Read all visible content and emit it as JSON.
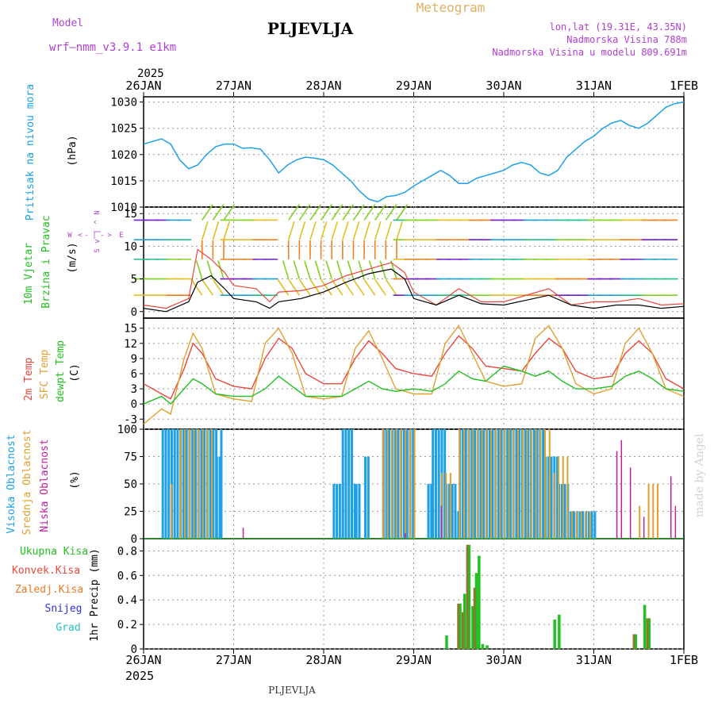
{
  "header": {
    "model_label": "Model",
    "model_name": "wrf–nmm_v3.9.1  e1km",
    "station": "PLJEVLJA",
    "product": "Meteogram",
    "lonlat": "lon,lat (19.31E, 43.35N)",
    "elevation": "Nadmorska Visina 788m",
    "model_elevation": "Nadmorska Visina u modelu 809.691m",
    "footer_station": "PLJEVLJA",
    "watermark": "made by Angel"
  },
  "colors": {
    "pressure": "#1ea0e6",
    "temp2m": "#e8473c",
    "sfc_temp": "#e0a030",
    "dewpt": "#22c020",
    "high_cloud": "#1ea0e6",
    "mid_cloud": "#e0a030",
    "low_cloud": "#c020a0",
    "total_precip": "#22c020",
    "conv_precip": "#e8473c",
    "frozen_precip": "#f07820",
    "snow": "#3030e0",
    "hail": "#20c0c0",
    "title": "#000000",
    "header_purple": "#b040d0",
    "meteogram": "#e0b060"
  },
  "chart_data": [
    {
      "panel": "pressure",
      "type": "line",
      "ylabel_lines": [
        "Pritisak na nivou mora",
        "(hPa)"
      ],
      "ylim": [
        1010,
        1031
      ],
      "yticks": [
        "1010",
        "1015",
        "1020",
        "1025",
        "1030"
      ],
      "x_days": [
        0,
        0.1,
        0.2,
        0.3,
        0.4,
        0.5,
        0.6,
        0.7,
        0.8,
        0.9,
        1.0,
        1.1,
        1.2,
        1.3,
        1.4,
        1.5,
        1.6,
        1.7,
        1.8,
        1.9,
        2.0,
        2.1,
        2.2,
        2.3,
        2.4,
        2.5,
        2.6,
        2.7,
        2.8,
        2.9,
        3.0,
        3.1,
        3.2,
        3.3,
        3.4,
        3.5,
        3.6,
        3.7,
        3.8,
        3.9,
        4.0,
        4.1,
        4.2,
        4.3,
        4.4,
        4.5,
        4.6,
        4.7,
        4.8,
        4.9,
        5.0,
        5.1,
        5.2,
        5.3,
        5.4,
        5.5,
        5.6,
        5.7,
        5.8,
        5.9,
        6.0
      ],
      "values": [
        1022,
        1022.5,
        1023,
        1022,
        1019,
        1017.3,
        1018,
        1020,
        1021.5,
        1022,
        1022,
        1021.2,
        1021.3,
        1021,
        1019,
        1016.5,
        1018,
        1019,
        1019.5,
        1019.3,
        1019,
        1018,
        1016.5,
        1015,
        1013,
        1011.5,
        1011,
        1012,
        1012.2,
        1012.8,
        1014,
        1015,
        1016,
        1017,
        1016,
        1014.5,
        1014.5,
        1015.5,
        1016,
        1016.5,
        1017,
        1018,
        1018.5,
        1018,
        1016.5,
        1016,
        1017,
        1019.5,
        1021,
        1022.5,
        1023.5,
        1025,
        1026,
        1026.5,
        1025.5,
        1025,
        1026,
        1027.5,
        1029,
        1029.7,
        1030
      ]
    },
    {
      "panel": "wind",
      "type": "line",
      "ylabel_lines": [
        "10m Vjetar",
        "Brzina i Pravac",
        "(m/s)"
      ],
      "compass_labels": [
        "W",
        "<",
        "-",
        "|",
        "-",
        ">",
        "E"
      ],
      "compass_vertical": [
        "N",
        "^",
        "|",
        "v",
        "S"
      ],
      "ylim": [
        -1,
        16
      ],
      "yticks": [
        "0",
        "5",
        "10",
        "15"
      ],
      "x_days": [
        0,
        0.25,
        0.5,
        0.6,
        0.75,
        0.9,
        1.0,
        1.25,
        1.4,
        1.5,
        1.75,
        2.0,
        2.25,
        2.5,
        2.75,
        2.9,
        3.0,
        3.25,
        3.5,
        3.75,
        4.0,
        4.5,
        4.75,
        5.0,
        5.25,
        5.5,
        5.75,
        6.0
      ],
      "speed": [
        0.5,
        0,
        1.5,
        4.5,
        5.5,
        3.5,
        2,
        1.5,
        0.5,
        1.5,
        2,
        3,
        4.5,
        5.8,
        6.5,
        5,
        2,
        1,
        2.5,
        1.2,
        1,
        2.5,
        1,
        0.5,
        1,
        1,
        0.5,
        0.8
      ],
      "gust": [
        1,
        0.5,
        2,
        9.5,
        8,
        6,
        4,
        3.5,
        1.5,
        3,
        3.2,
        4,
        5.5,
        6.5,
        7.5,
        6,
        3,
        1,
        3.5,
        1.5,
        1.5,
        3.5,
        1,
        1.5,
        1.5,
        2,
        1,
        1.2
      ]
    },
    {
      "panel": "temperature",
      "type": "line",
      "ylabel_lines": [
        "2m Temp",
        "SFC Temp",
        "dewpt Temp",
        "(C)"
      ],
      "ylim": [
        -5,
        17
      ],
      "yticks": [
        "-3",
        "0",
        "3",
        "6",
        "9",
        "12",
        "15"
      ],
      "x_days": [
        0,
        0.2,
        0.3,
        0.45,
        0.55,
        0.65,
        0.8,
        1.0,
        1.2,
        1.35,
        1.5,
        1.65,
        1.8,
        2.0,
        2.2,
        2.35,
        2.5,
        2.65,
        2.8,
        3.0,
        3.2,
        3.35,
        3.5,
        3.65,
        3.8,
        4.0,
        4.2,
        4.35,
        4.5,
        4.65,
        4.8,
        5.0,
        5.2,
        5.35,
        5.5,
        5.65,
        5.8,
        6.0
      ],
      "series": [
        {
          "key": "t2m",
          "values": [
            4,
            2,
            1,
            7,
            12,
            10,
            5,
            3.5,
            3,
            9,
            13,
            11,
            6,
            4,
            4,
            9,
            12.5,
            10,
            7,
            6,
            5.5,
            10,
            13.5,
            11,
            7.5,
            7,
            6.5,
            10,
            13,
            11,
            6.5,
            5,
            5.5,
            10,
            12.5,
            10,
            5,
            3
          ]
        },
        {
          "key": "sfc",
          "values": [
            -4,
            -1,
            -2,
            9,
            14,
            11,
            2,
            1,
            0.5,
            12,
            15,
            10,
            1.5,
            1,
            1.5,
            11,
            14.5,
            9,
            3,
            2,
            2,
            12,
            15.5,
            10,
            4.5,
            3.5,
            4,
            13,
            15.5,
            11,
            4,
            2,
            3,
            12,
            15,
            10,
            3,
            1.5
          ]
        },
        {
          "key": "dewpt",
          "values": [
            0,
            1.5,
            0,
            3,
            5,
            4,
            2,
            1.5,
            1.5,
            3,
            5.5,
            3.5,
            1.5,
            1.5,
            1.5,
            3,
            4.5,
            3,
            2.5,
            3,
            2.5,
            4,
            6.5,
            5,
            4.5,
            7.5,
            6.5,
            5.5,
            6.5,
            4.5,
            3,
            3,
            3.5,
            5.5,
            6.5,
            5,
            3,
            2.5
          ]
        }
      ]
    },
    {
      "panel": "clouds",
      "type": "bar",
      "ylabel_lines": [
        "Visoka Oblacnost",
        "Srednja Oblacnost",
        "Niska Oblacnost",
        "(%)"
      ],
      "ylim": [
        0,
        100
      ],
      "yticks": [
        "0",
        "25",
        "50",
        "75",
        "100"
      ],
      "high": [
        [
          0.2,
          0.8,
          100
        ],
        [
          0.8,
          0.85,
          75
        ],
        [
          0.85,
          0.88,
          100
        ],
        [
          2.1,
          2.2,
          50
        ],
        [
          2.2,
          2.3,
          100
        ],
        [
          2.3,
          2.35,
          50
        ],
        [
          2.35,
          2.4,
          50
        ],
        [
          2.45,
          2.5,
          75
        ],
        [
          2.65,
          3.0,
          100
        ],
        [
          3.15,
          3.2,
          50
        ],
        [
          3.2,
          3.35,
          100
        ],
        [
          3.35,
          3.45,
          50
        ],
        [
          3.45,
          3.5,
          25
        ],
        [
          3.5,
          4.45,
          100
        ],
        [
          4.45,
          4.6,
          75
        ],
        [
          4.6,
          4.7,
          50
        ],
        [
          4.7,
          4.9,
          25
        ],
        [
          4.9,
          5.0,
          25
        ]
      ],
      "mid": [
        [
          0.3,
          0.35,
          50
        ],
        [
          0.4,
          0.8,
          100
        ],
        [
          2.65,
          3.0,
          100
        ],
        [
          3.3,
          3.4,
          60
        ],
        [
          3.5,
          4.5,
          100
        ],
        [
          4.5,
          4.6,
          60
        ],
        [
          4.6,
          4.7,
          75
        ],
        [
          4.75,
          4.95,
          25
        ],
        [
          5.5,
          5.55,
          30
        ],
        [
          5.6,
          5.65,
          50
        ],
        [
          5.7,
          5.75,
          50
        ]
      ],
      "low": [
        [
          1.1,
          1.12,
          10
        ],
        [
          2.9,
          2.92,
          5
        ],
        [
          3.3,
          3.32,
          30
        ],
        [
          5.25,
          5.27,
          80
        ],
        [
          5.3,
          5.32,
          90
        ],
        [
          5.4,
          5.42,
          65
        ],
        [
          5.55,
          5.57,
          20
        ],
        [
          5.85,
          5.87,
          57
        ],
        [
          5.9,
          5.92,
          30
        ]
      ]
    },
    {
      "panel": "precip",
      "type": "bar",
      "ylabel_lines": [
        "1hr Precip (mm)"
      ],
      "legend_labels": [
        "Ukupna Kisa",
        "Konvek.Kisa",
        "Zaledj.Kisa",
        "Snijeg",
        "Grad"
      ],
      "ylim": [
        0,
        0.9
      ],
      "yticks": [
        "0",
        "0.2",
        "0.4",
        "0.6",
        "0.8"
      ],
      "total": [
        [
          3.35,
          0.11
        ],
        [
          3.5,
          0.37
        ],
        [
          3.55,
          0.45
        ],
        [
          3.6,
          0.85
        ],
        [
          3.64,
          0.35
        ],
        [
          3.68,
          0.62
        ],
        [
          3.71,
          0.76
        ],
        [
          3.75,
          0.04
        ],
        [
          3.8,
          0.03
        ],
        [
          4.55,
          0.24
        ],
        [
          4.6,
          0.28
        ],
        [
          5.45,
          0.12
        ],
        [
          5.55,
          0.36
        ],
        [
          5.6,
          0.25
        ]
      ],
      "conv": [
        [
          3.5,
          0.37
        ],
        [
          3.55,
          0.3
        ],
        [
          3.6,
          0.85
        ],
        [
          3.68,
          0.5
        ],
        [
          5.45,
          0.12
        ],
        [
          5.6,
          0.25
        ]
      ]
    }
  ],
  "x_axis": {
    "year": "2025",
    "ticks": [
      "26JAN",
      "27JAN",
      "28JAN",
      "29JAN",
      "30JAN",
      "31JAN",
      "1FEB"
    ]
  }
}
